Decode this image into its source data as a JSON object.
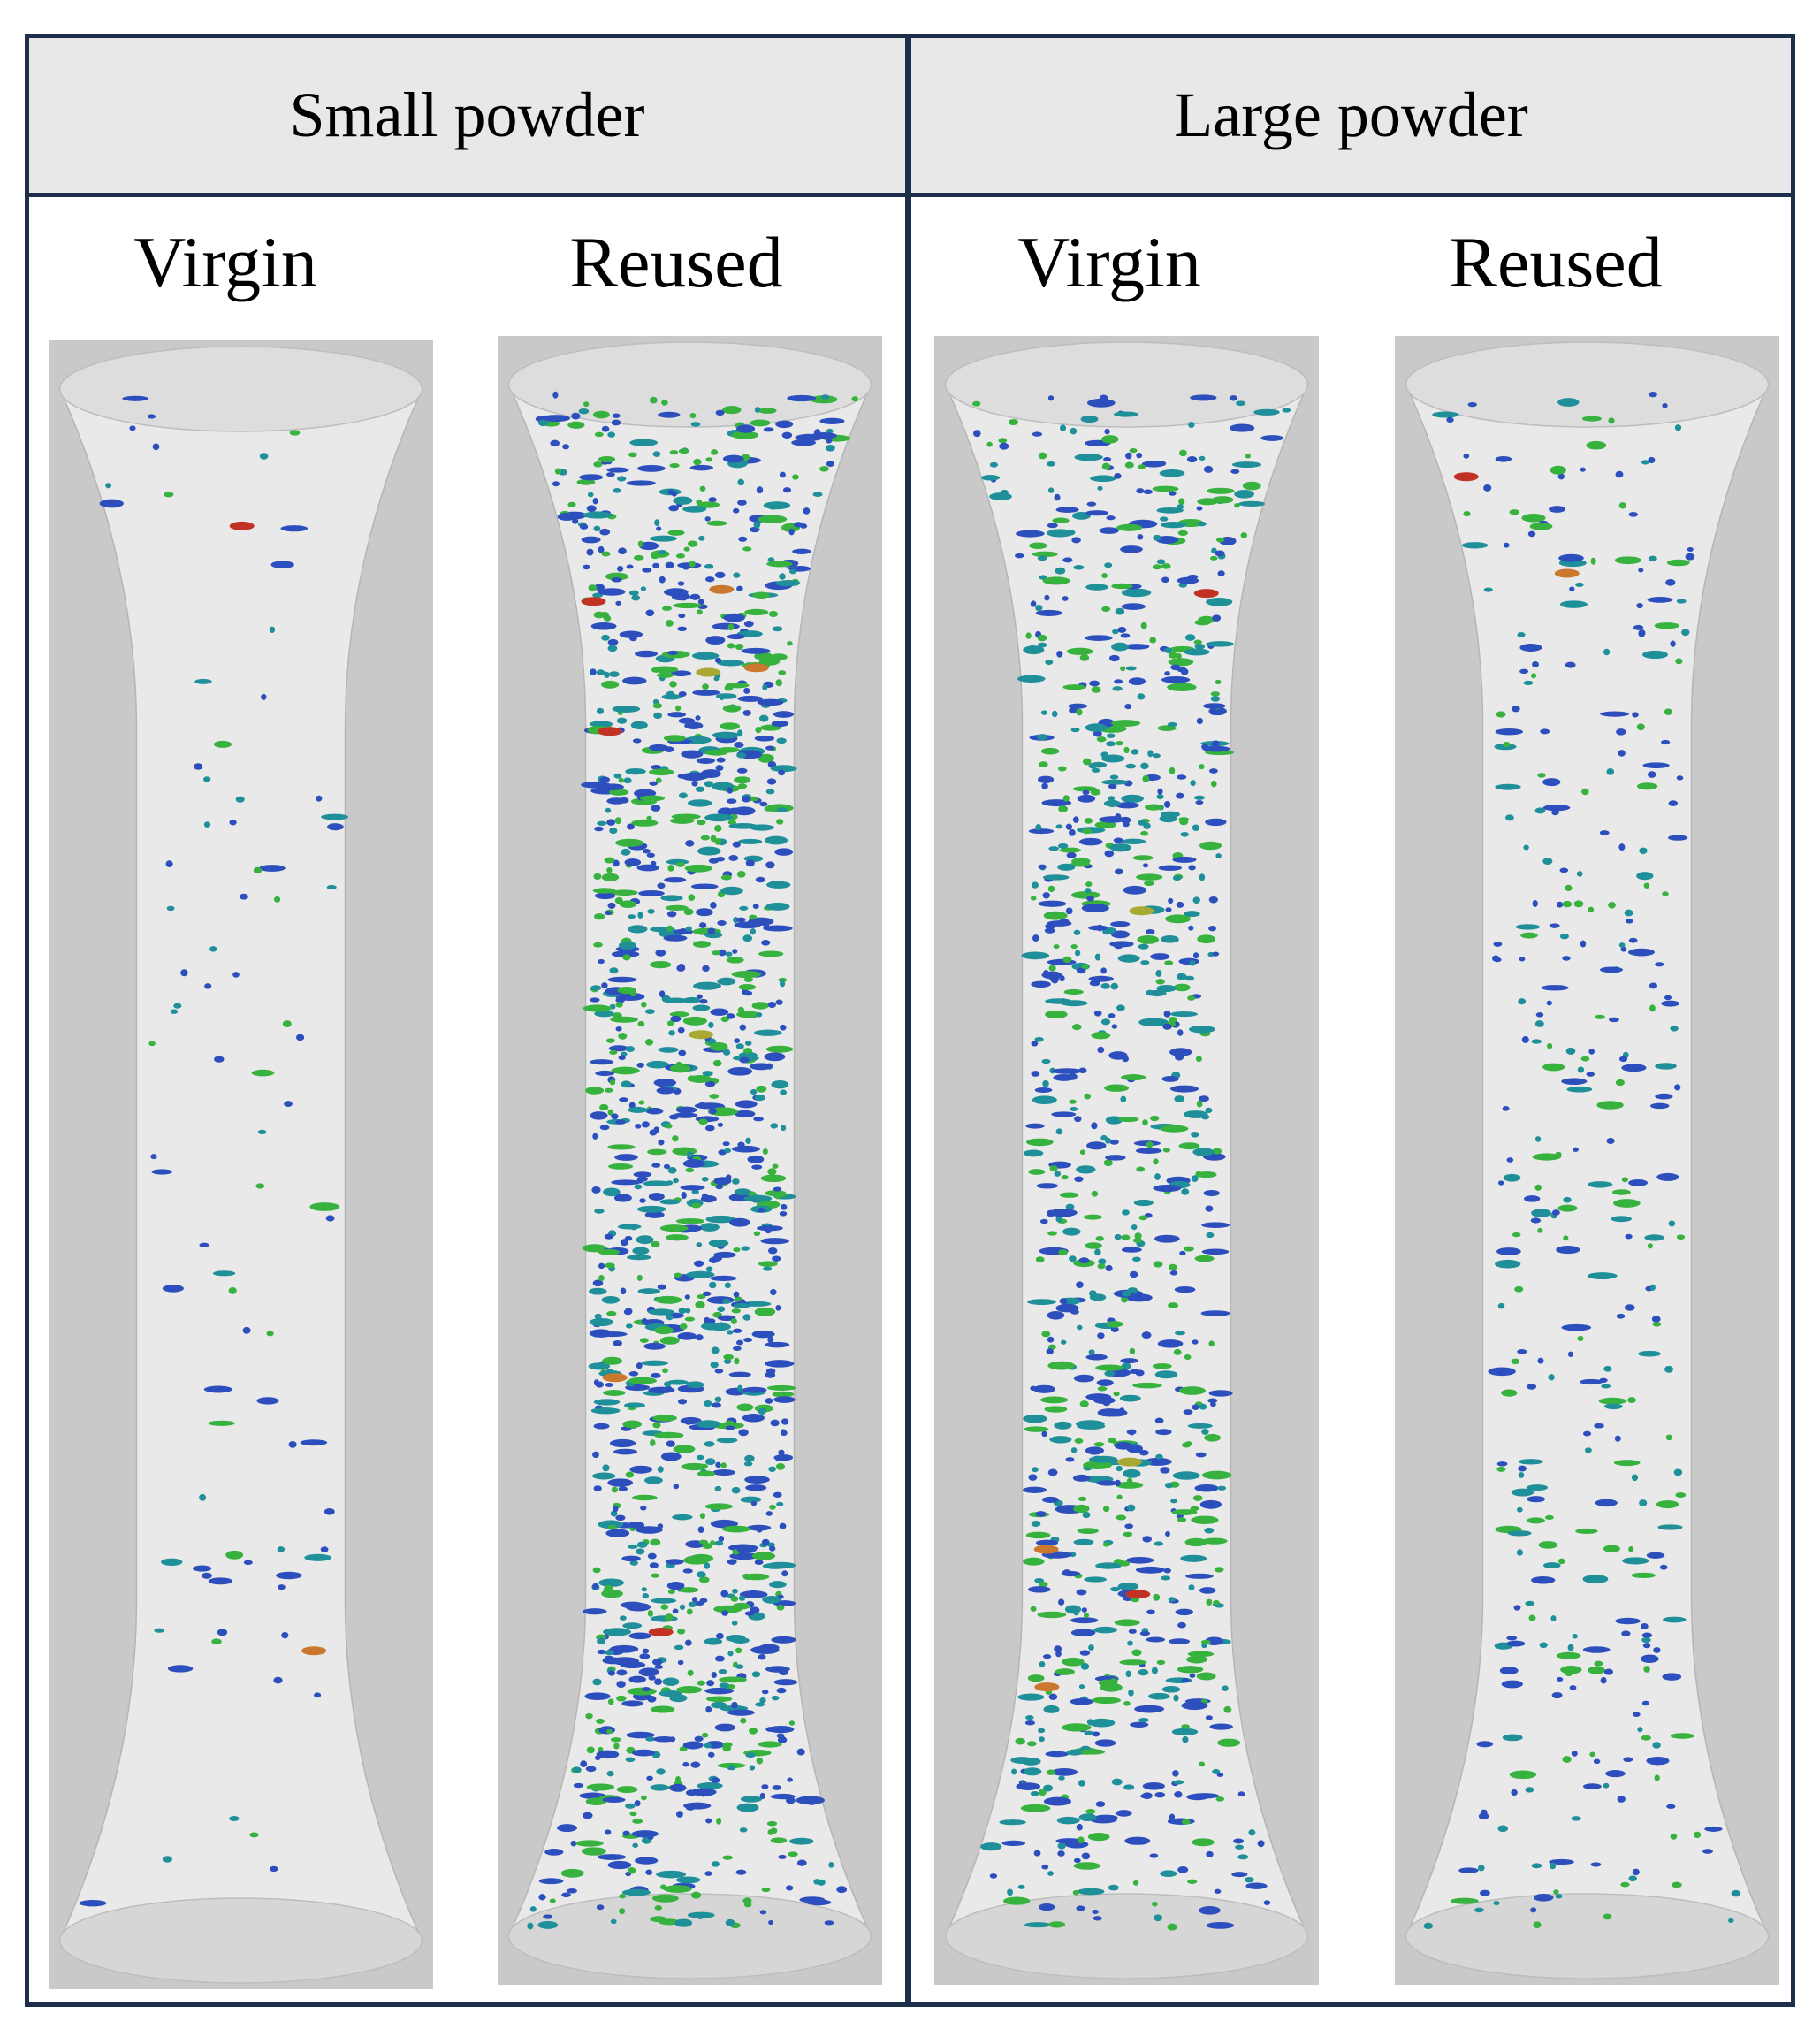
{
  "groups": [
    {
      "title": "Small powder",
      "columns": [
        {
          "label": "Virgin"
        },
        {
          "label": "Reused"
        }
      ]
    },
    {
      "title": "Large powder",
      "columns": [
        {
          "label": "Virgin"
        },
        {
          "label": "Reused"
        }
      ]
    }
  ],
  "specimens": [
    {
      "id": "small-virgin",
      "pore_density": 0.06,
      "seed": 11
    },
    {
      "id": "small-reused",
      "pore_density": 1.0,
      "seed": 23
    },
    {
      "id": "large-virgin",
      "pore_density": 0.7,
      "seed": 37
    },
    {
      "id": "large-reused",
      "pore_density": 0.25,
      "seed": 53
    }
  ],
  "colors": {
    "border": "#1c2e4a",
    "header_bg": "#e8e8e8",
    "image_bg": "#c9c9c9",
    "specimen_body": "#e9e9e9",
    "pore_blue": "#2d4fbd",
    "pore_teal": "#1f8f9a",
    "pore_green": "#38b23e",
    "pore_yellow": "#a8a832",
    "pore_orange": "#c9782e",
    "pore_red": "#c23224"
  }
}
